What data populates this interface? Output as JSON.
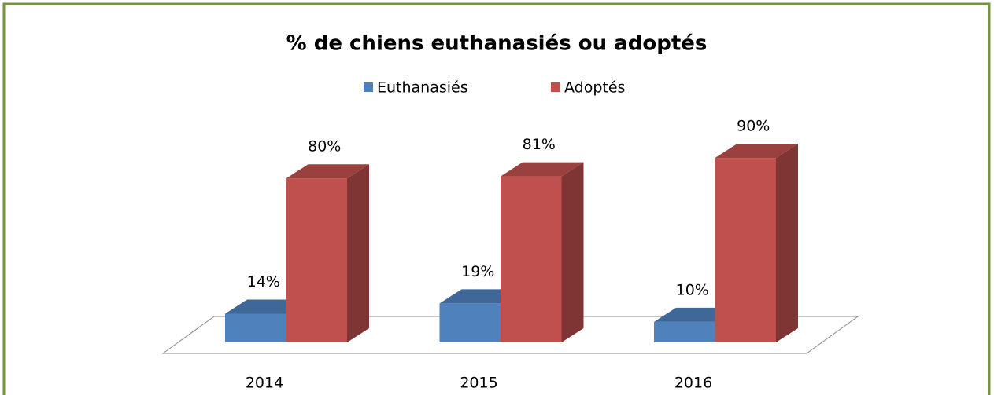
{
  "chart_data": {
    "type": "bar3d",
    "title": "% de chiens euthanasiés ou adoptés",
    "categories": [
      "2014",
      "2015",
      "2016"
    ],
    "series": [
      {
        "name": "Euthanasiés",
        "color": "#4f81bd",
        "values": [
          14,
          19,
          10
        ],
        "value_labels": [
          "14%",
          "19%",
          "10%"
        ]
      },
      {
        "name": "Adoptés",
        "color": "#c0504d",
        "values": [
          80,
          81,
          90
        ],
        "value_labels": [
          "80%",
          "81%",
          "90%"
        ]
      }
    ]
  }
}
